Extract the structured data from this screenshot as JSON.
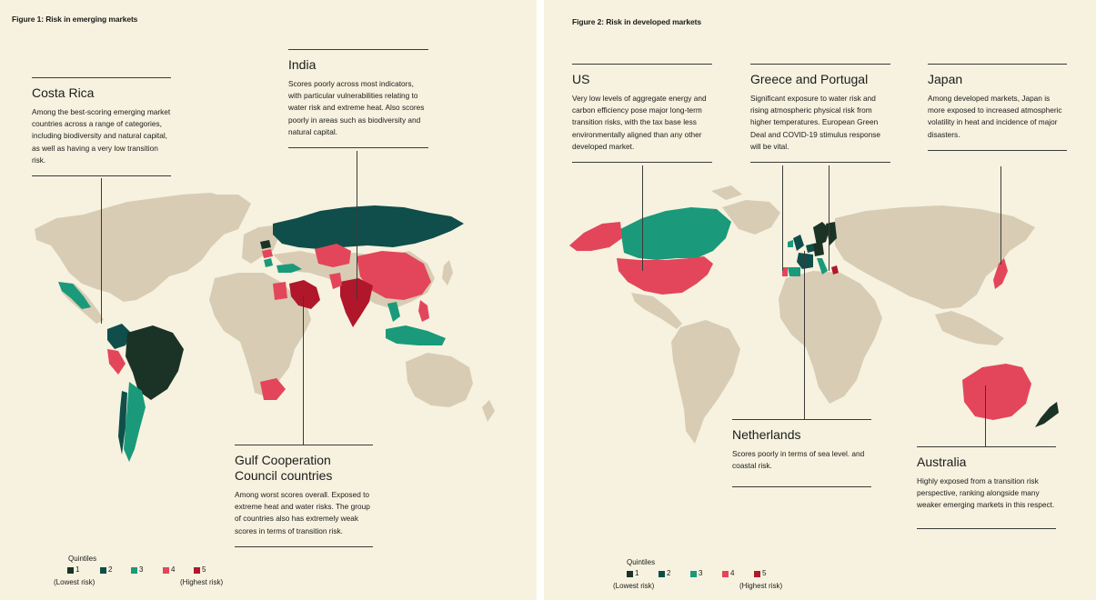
{
  "colors": {
    "background": "#f6f2df",
    "land": "#d8ccb4",
    "q1": "#1a3326",
    "q2": "#0f4e4a",
    "q3": "#1a9a7a",
    "q4": "#e3465a",
    "q5": "#b0172b"
  },
  "figure1": {
    "title": "Figure 1: Risk in emerging markets",
    "callouts": {
      "costa_rica": {
        "heading": "Costa Rica",
        "body": "Among the best-scoring emerging market countries across a range of categories, including biodiversity and natural capital, as well as having a very low transition risk."
      },
      "india": {
        "heading": "India",
        "body": "Scores poorly across most indicators, with particular vulnerabilities relating to water risk and extreme heat. Also scores poorly in areas such as biodiversity and natural capital."
      },
      "gcc": {
        "heading": "Gulf Cooperation Council countries",
        "body": "Among worst scores overall. Exposed to extreme heat and water risks. The group of countries also has extremely weak scores in terms of transition risk."
      }
    },
    "legend": {
      "title": "Quintiles",
      "items": [
        "1",
        "2",
        "3",
        "4",
        "5"
      ],
      "low_label": "(Lowest risk)",
      "high_label": "(Highest risk)"
    }
  },
  "figure2": {
    "title": "Figure 2: Risk in developed markets",
    "callouts": {
      "us": {
        "heading": "US",
        "body": "Very low levels of aggregate energy and carbon efficiency pose major long-term transition risks, with the tax base less environmentally aligned than any other developed market."
      },
      "greece_portugal": {
        "heading": "Greece and Portugal",
        "body": "Significant exposure to water risk and rising atmospheric physical risk from higher temperatures. European Green Deal and COVID-19 stimulus response will be vital."
      },
      "japan": {
        "heading": "Japan",
        "body": "Among developed markets, Japan is more exposed to increased atmospheric volatility in heat and incidence of major disasters."
      },
      "netherlands": {
        "heading": "Netherlands",
        "body": "Scores poorly in terms of sea level. and coastal risk."
      },
      "australia": {
        "heading": "Australia",
        "body": "Highly exposed from a transition risk perspective, ranking alongside many weaker emerging markets in this respect."
      }
    },
    "legend": {
      "title": "Quintiles",
      "items": [
        "1",
        "2",
        "3",
        "4",
        "5"
      ],
      "low_label": "(Lowest risk)",
      "high_label": "(Highest risk)"
    }
  }
}
